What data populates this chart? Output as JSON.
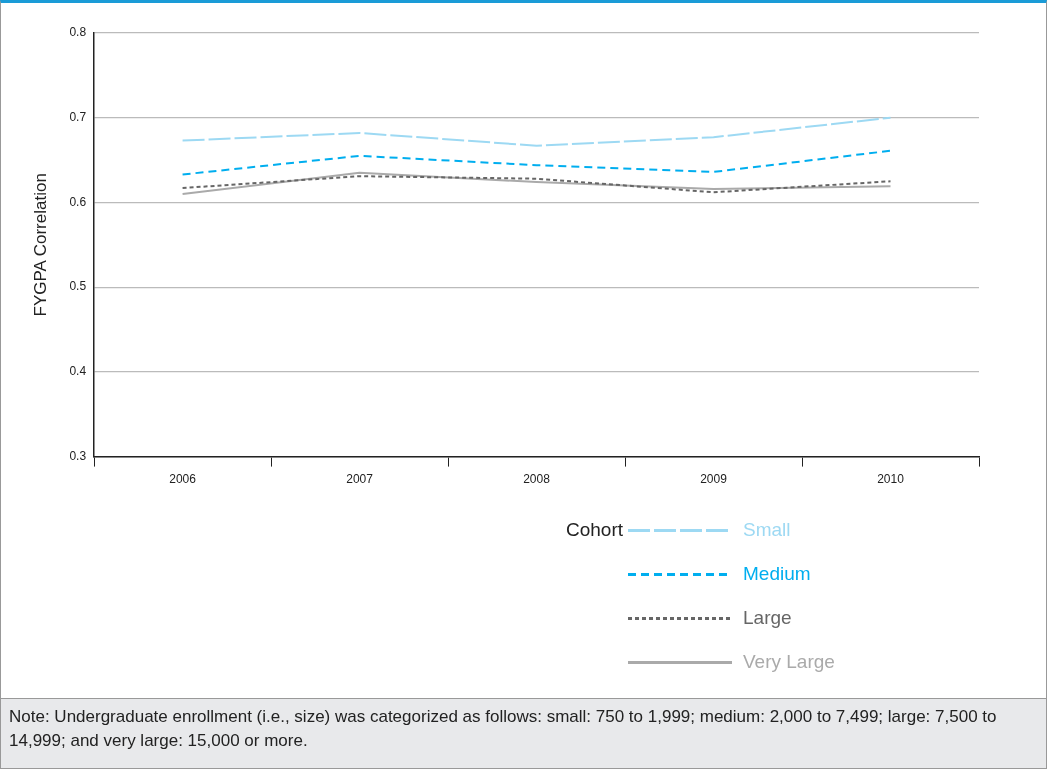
{
  "chart_data": {
    "type": "line",
    "ylabel": "FYGPA Correlation",
    "legend_title": "Cohort",
    "categories": [
      "2006",
      "2007",
      "2008",
      "2009",
      "2010"
    ],
    "series": [
      {
        "name": "Small",
        "color": "#9dd9f3",
        "line_style": "longdash",
        "values": [
          0.673,
          0.682,
          0.667,
          0.677,
          0.7
        ]
      },
      {
        "name": "Medium",
        "color": "#00aeef",
        "line_style": "dashed",
        "values": [
          0.633,
          0.655,
          0.644,
          0.636,
          0.661
        ]
      },
      {
        "name": "Large",
        "color": "#666666",
        "line_style": "dotted",
        "values": [
          0.617,
          0.631,
          0.628,
          0.612,
          0.625
        ]
      },
      {
        "name": "Very Large",
        "color": "#aaaaaa",
        "line_style": "solid",
        "values": [
          0.61,
          0.635,
          0.624,
          0.616,
          0.619
        ]
      }
    ],
    "ylim": [
      0.3,
      0.8
    ],
    "yticks": [
      0.3,
      0.4,
      0.5,
      0.6,
      0.7,
      0.8
    ],
    "grid": "y",
    "legend": "bottom",
    "marker": "none",
    "annotations": [
      "Note: Undergraduate enrollment (i.e., size) was categorized as follows: small: 750 to 1,999; medium: 2,000 to 7,499; large: 7,500 to 14,999; and very large: 15,000 or more."
    ]
  }
}
